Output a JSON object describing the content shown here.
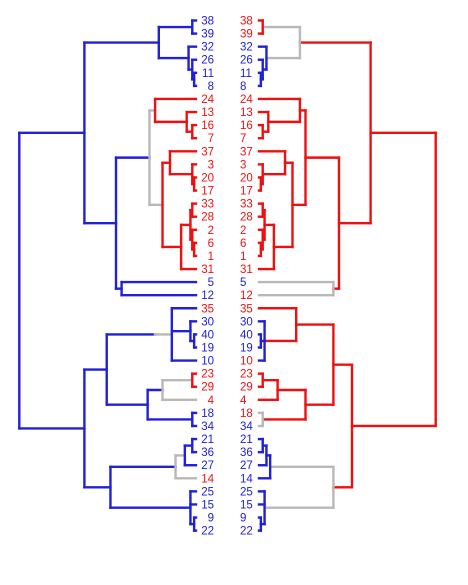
{
  "colors": {
    "blue": "#2020d8",
    "red": "#ee1010",
    "gray": "#b8b8b8"
  },
  "left_tree": {
    "leaves": [
      {
        "label": "38",
        "color": "blue"
      },
      {
        "label": "39",
        "color": "blue"
      },
      {
        "label": "32",
        "color": "blue"
      },
      {
        "label": "26",
        "color": "blue"
      },
      {
        "label": "11",
        "color": "blue"
      },
      {
        "label": "8",
        "color": "blue"
      },
      {
        "label": "24",
        "color": "red"
      },
      {
        "label": "13",
        "color": "red"
      },
      {
        "label": "16",
        "color": "red"
      },
      {
        "label": "7",
        "color": "red"
      },
      {
        "label": "37",
        "color": "red"
      },
      {
        "label": "3",
        "color": "red"
      },
      {
        "label": "20",
        "color": "red"
      },
      {
        "label": "17",
        "color": "red"
      },
      {
        "label": "33",
        "color": "red"
      },
      {
        "label": "28",
        "color": "red"
      },
      {
        "label": "2",
        "color": "red"
      },
      {
        "label": "6",
        "color": "red"
      },
      {
        "label": "1",
        "color": "red"
      },
      {
        "label": "31",
        "color": "red"
      },
      {
        "label": "5",
        "color": "blue"
      },
      {
        "label": "12",
        "color": "blue"
      },
      {
        "label": "35",
        "color": "red"
      },
      {
        "label": "30",
        "color": "blue"
      },
      {
        "label": "40",
        "color": "blue"
      },
      {
        "label": "19",
        "color": "blue"
      },
      {
        "label": "10",
        "color": "blue"
      },
      {
        "label": "23",
        "color": "red"
      },
      {
        "label": "29",
        "color": "red"
      },
      {
        "label": "4",
        "color": "red"
      },
      {
        "label": "18",
        "color": "blue"
      },
      {
        "label": "34",
        "color": "blue"
      },
      {
        "label": "21",
        "color": "blue"
      },
      {
        "label": "36",
        "color": "blue"
      },
      {
        "label": "27",
        "color": "blue"
      },
      {
        "label": "14",
        "color": "red"
      },
      {
        "label": "25",
        "color": "blue"
      },
      {
        "label": "15",
        "color": "blue"
      },
      {
        "label": "9",
        "color": "blue"
      },
      {
        "label": "22",
        "color": "blue"
      }
    ]
  },
  "right_tree": {
    "leaves": [
      {
        "label": "38",
        "color": "red"
      },
      {
        "label": "39",
        "color": "red"
      },
      {
        "label": "32",
        "color": "blue"
      },
      {
        "label": "26",
        "color": "blue"
      },
      {
        "label": "11",
        "color": "blue"
      },
      {
        "label": "8",
        "color": "blue"
      },
      {
        "label": "24",
        "color": "red"
      },
      {
        "label": "13",
        "color": "red"
      },
      {
        "label": "16",
        "color": "red"
      },
      {
        "label": "7",
        "color": "red"
      },
      {
        "label": "37",
        "color": "red"
      },
      {
        "label": "3",
        "color": "red"
      },
      {
        "label": "20",
        "color": "red"
      },
      {
        "label": "17",
        "color": "red"
      },
      {
        "label": "33",
        "color": "red"
      },
      {
        "label": "28",
        "color": "red"
      },
      {
        "label": "2",
        "color": "red"
      },
      {
        "label": "6",
        "color": "red"
      },
      {
        "label": "1",
        "color": "red"
      },
      {
        "label": "31",
        "color": "red"
      },
      {
        "label": "5",
        "color": "blue"
      },
      {
        "label": "12",
        "color": "red"
      },
      {
        "label": "35",
        "color": "red"
      },
      {
        "label": "30",
        "color": "blue"
      },
      {
        "label": "40",
        "color": "blue"
      },
      {
        "label": "19",
        "color": "blue"
      },
      {
        "label": "10",
        "color": "red"
      },
      {
        "label": "23",
        "color": "red"
      },
      {
        "label": "29",
        "color": "red"
      },
      {
        "label": "4",
        "color": "red"
      },
      {
        "label": "18",
        "color": "red"
      },
      {
        "label": "34",
        "color": "blue"
      },
      {
        "label": "21",
        "color": "blue"
      },
      {
        "label": "36",
        "color": "blue"
      },
      {
        "label": "27",
        "color": "blue"
      },
      {
        "label": "14",
        "color": "blue"
      },
      {
        "label": "25",
        "color": "blue"
      },
      {
        "label": "15",
        "color": "blue"
      },
      {
        "label": "9",
        "color": "blue"
      },
      {
        "label": "22",
        "color": "blue"
      }
    ]
  }
}
